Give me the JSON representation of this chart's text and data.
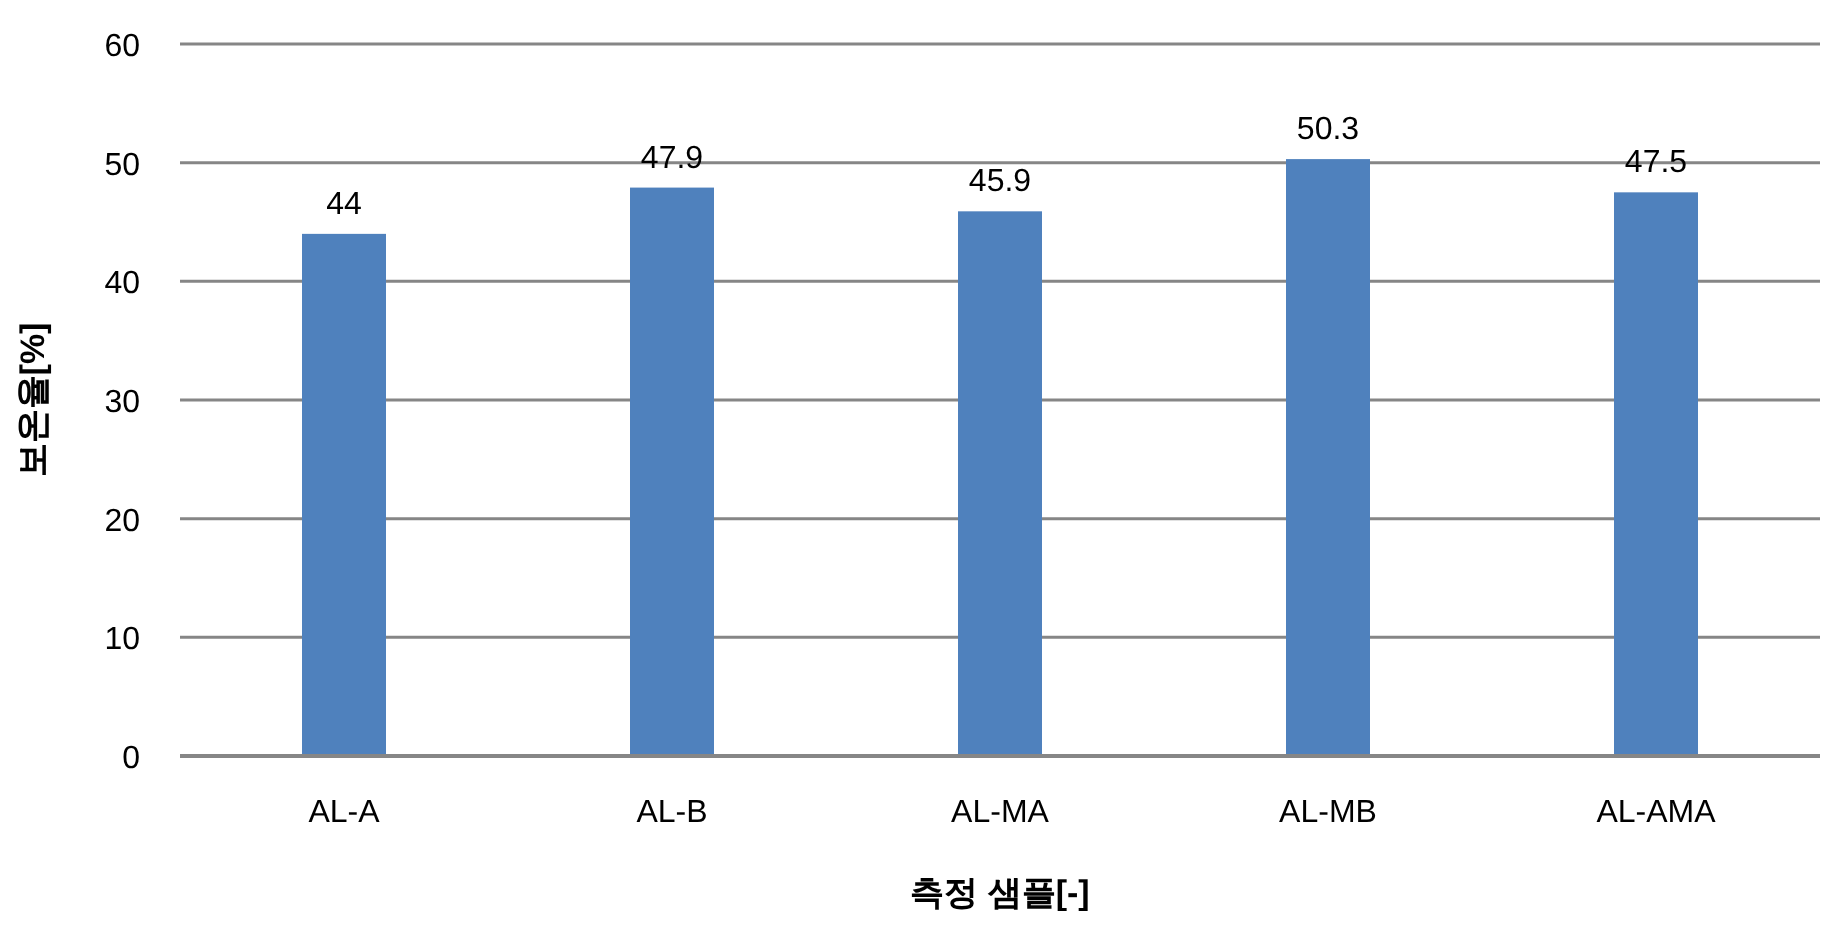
{
  "chart_data": {
    "type": "bar",
    "xlabel": "측정 샘플[-]",
    "ylabel": "보온율[%]",
    "categories": [
      "AL-A",
      "AL-B",
      "AL-MA",
      "AL-MB",
      "AL-AMA"
    ],
    "values": [
      44,
      47.9,
      45.9,
      50.3,
      47.5
    ],
    "color": "#4f81bd",
    "ylim": [
      0,
      60
    ],
    "yticks": [
      0,
      10,
      20,
      30,
      40,
      50,
      60
    ],
    "grid": "y",
    "data_labels": true
  }
}
